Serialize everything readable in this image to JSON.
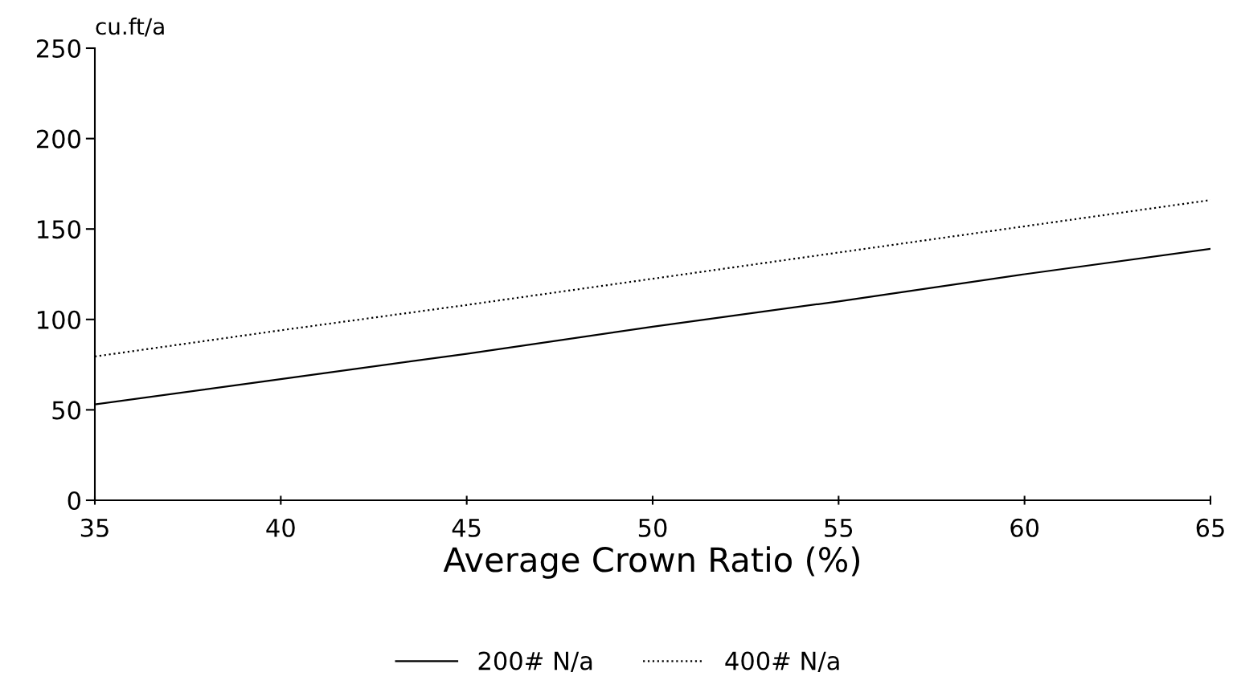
{
  "chart_data": {
    "type": "line",
    "xlabel": "Average Crown Ratio (%)",
    "ylabel": "cu.ft/a",
    "x": [
      35,
      40,
      45,
      50,
      55,
      60,
      65
    ],
    "series": [
      {
        "name": "200# N/a",
        "color": "#000000",
        "line_style": "solid",
        "values": [
          53,
          67,
          81,
          96,
          110,
          125,
          139
        ]
      },
      {
        "name": "400# N/a",
        "color": "#000000",
        "line_style": "dotted",
        "values": [
          79.5,
          94,
          108,
          122.5,
          137,
          151.5,
          166
        ]
      }
    ],
    "xlim": [
      35,
      65
    ],
    "xticks": [
      35,
      40,
      45,
      50,
      55,
      60,
      65
    ],
    "ylim": [
      0,
      250
    ],
    "yticks": [
      0,
      50,
      100,
      150,
      200,
      250
    ],
    "grid": false,
    "legend": "bottom",
    "marker": "none"
  }
}
